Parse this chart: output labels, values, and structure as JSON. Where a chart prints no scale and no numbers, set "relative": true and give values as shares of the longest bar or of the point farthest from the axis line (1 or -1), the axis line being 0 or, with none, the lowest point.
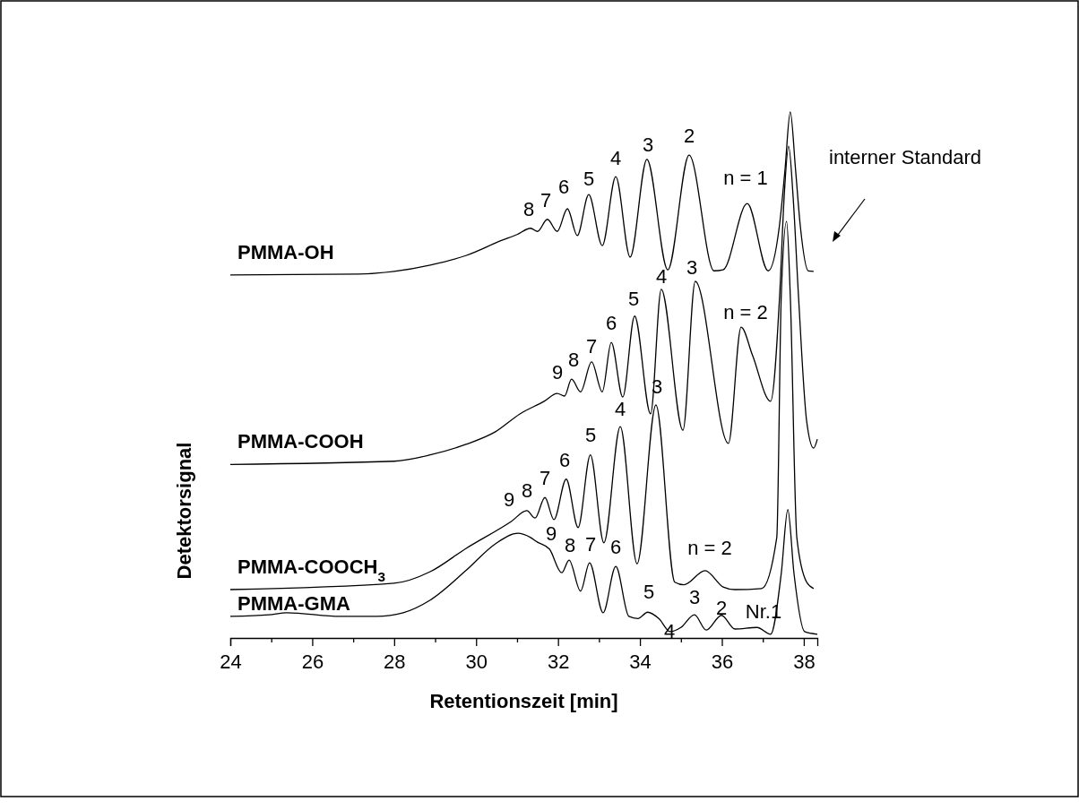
{
  "chart_data": {
    "type": "line",
    "relative": true,
    "xlabel": "Retentionszeit [min]",
    "ylabel": "Detektorsignal",
    "xlim": [
      24,
      38.33
    ],
    "xticks": [
      24,
      {
        "value": 25,
        "label": null
      },
      26,
      {
        "value": 27,
        "label": null
      },
      28,
      {
        "value": 29,
        "label": null
      },
      30,
      {
        "value": 31,
        "label": null
      },
      32,
      {
        "value": 33,
        "label": null
      },
      34,
      {
        "value": 35,
        "label": null
      },
      36,
      {
        "value": 37,
        "label": null
      },
      38
    ],
    "tick_labels": "x",
    "line_style": "solid",
    "series": [
      {
        "name": "PMMA-OH",
        "color": "#000000",
        "x": [
          24,
          27.13,
          28,
          28.88,
          29.75,
          30.63,
          31,
          31.33,
          31.5,
          31.74,
          31.98,
          32.23,
          32.47,
          32.75,
          33.08,
          33.41,
          33.76,
          34.17,
          34.68,
          35.2,
          35.81,
          36.03,
          36.62,
          37.13,
          37.41,
          37.54,
          37.67,
          37.8,
          37.91,
          38.11,
          38.24
        ],
        "values": [
          0.69,
          0.692,
          0.697,
          0.709,
          0.727,
          0.756,
          0.767,
          0.779,
          0.773,
          0.796,
          0.773,
          0.816,
          0.765,
          0.843,
          0.746,
          0.877,
          0.724,
          0.91,
          0.7,
          0.918,
          0.698,
          0.7,
          0.826,
          0.698,
          0.787,
          0.889,
          1,
          0.889,
          0.787,
          0.698,
          0.697
        ]
      },
      {
        "name": "PMMA-COOH",
        "color": "#000000",
        "x": [
          24,
          28,
          28.88,
          29.75,
          30.47,
          31.07,
          31.66,
          31.98,
          32.16,
          32.33,
          32.55,
          32.82,
          33.08,
          33.3,
          33.58,
          33.87,
          34.26,
          34.52,
          35.05,
          35.35,
          36.16,
          36.47,
          36.75,
          37.19,
          37.41,
          37.52,
          37.63,
          37.74,
          37.87,
          38.07,
          38.24,
          38.33
        ],
        "values": [
          0.33,
          0.336,
          0.348,
          0.368,
          0.392,
          0.426,
          0.45,
          0.465,
          0.46,
          0.492,
          0.468,
          0.525,
          0.468,
          0.562,
          0.458,
          0.612,
          0.426,
          0.663,
          0.395,
          0.678,
          0.37,
          0.591,
          0.537,
          0.45,
          0.651,
          0.838,
          0.935,
          0.838,
          0.651,
          0.412,
          0.361,
          0.378
        ]
      },
      {
        "name": "PMMA-COOCH$_{3}$",
        "color": "#000000",
        "x": [
          24,
          28,
          28.88,
          29.75,
          30.85,
          31.24,
          31.44,
          31.68,
          31.9,
          32.2,
          32.49,
          32.79,
          33.12,
          33.52,
          33.93,
          34.39,
          34.85,
          35.07,
          35.59,
          36.03,
          36.32,
          36.97,
          37.34,
          37.45,
          37.58,
          37.67,
          37.83,
          38.07,
          38.24
        ],
        "values": [
          0.092,
          0.104,
          0.126,
          0.17,
          0.221,
          0.242,
          0.228,
          0.267,
          0.225,
          0.302,
          0.21,
          0.348,
          0.181,
          0.402,
          0.141,
          0.443,
          0.106,
          0.101,
          0.128,
          0.097,
          0.092,
          0.094,
          0.191,
          0.651,
          0.792,
          0.651,
          0.191,
          0.106,
          0.094
        ]
      },
      {
        "name": "PMMA-GMA",
        "color": "#000000",
        "x": [
          24,
          24.94,
          25.38,
          26.69,
          27.57,
          28.22,
          28.88,
          29.75,
          30.47,
          31.02,
          31.33,
          31.5,
          31.79,
          32.09,
          32.27,
          32.55,
          32.77,
          33.1,
          33.41,
          33.73,
          33.95,
          34.19,
          34.46,
          34.74,
          35,
          35.33,
          35.62,
          35.99,
          36.32,
          36.86,
          37.19,
          37.45,
          37.61,
          37.76,
          38.02,
          38.33
        ],
        "values": [
          0.041,
          0.044,
          0.048,
          0.041,
          0.041,
          0.048,
          0.072,
          0.128,
          0.179,
          0.199,
          0.191,
          0.182,
          0.169,
          0.124,
          0.148,
          0.089,
          0.143,
          0.048,
          0.136,
          0.041,
          0.037,
          0.049,
          0.037,
          0.012,
          0.02,
          0.044,
          0.015,
          0.043,
          0.017,
          0.02,
          0.007,
          0.123,
          0.244,
          0.123,
          0.012,
          0.007
        ]
      }
    ],
    "annotations": [
      "8",
      "7",
      "6",
      "5",
      "4",
      "3",
      "2",
      "n = 1",
      "9",
      "8",
      "7",
      "6",
      "5",
      "4",
      "3",
      "n = 2",
      "9",
      "8",
      "7",
      "6",
      "5",
      "4",
      "3",
      "n = 2",
      "9",
      "8",
      "7",
      "6",
      "5",
      "4",
      "3",
      "2",
      "Nr.1",
      "interner Standard"
    ]
  }
}
